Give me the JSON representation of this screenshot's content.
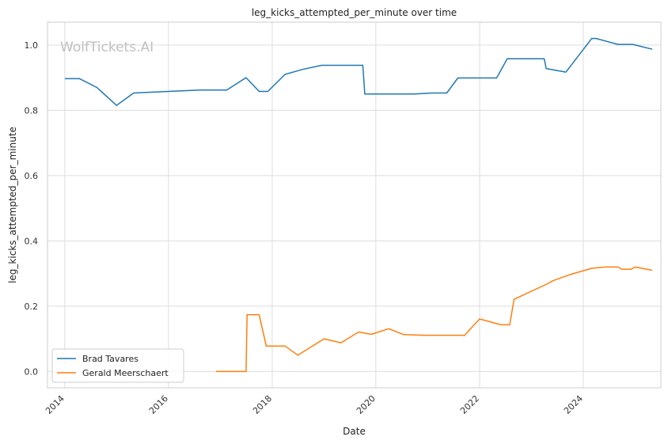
{
  "chart_data": {
    "type": "line",
    "title": "leg_kicks_attempted_per_minute over time",
    "xlabel": "Date",
    "ylabel": "leg_kicks_attempted_per_minute",
    "watermark": "WolfTickets.AI",
    "xlim": [
      "2013-09-01",
      "2025-07-01"
    ],
    "ylim": [
      -0.05,
      1.07
    ],
    "x_ticks": [
      "2014",
      "2016",
      "2018",
      "2020",
      "2022",
      "2024"
    ],
    "y_ticks": [
      "0.0",
      "0.2",
      "0.4",
      "0.6",
      "0.8",
      "1.0"
    ],
    "grid": true,
    "legend_position": "lower-left",
    "series": [
      {
        "name": "Brad Tavares",
        "color": "#1f77b4",
        "points": [
          [
            "2014-01-01",
            0.897
          ],
          [
            "2014-04-15",
            0.897
          ],
          [
            "2014-08-15",
            0.87
          ],
          [
            "2015-01-01",
            0.815
          ],
          [
            "2015-05-01",
            0.853
          ],
          [
            "2016-01-01",
            0.858
          ],
          [
            "2016-08-15",
            0.862
          ],
          [
            "2017-02-15",
            0.862
          ],
          [
            "2017-07-01",
            0.9
          ],
          [
            "2017-10-01",
            0.858
          ],
          [
            "2017-12-01",
            0.858
          ],
          [
            "2018-04-01",
            0.91
          ],
          [
            "2018-08-01",
            0.925
          ],
          [
            "2018-12-15",
            0.938
          ],
          [
            "2019-10-01",
            0.938
          ],
          [
            "2019-10-15",
            0.85
          ],
          [
            "2020-10-01",
            0.85
          ],
          [
            "2021-02-01",
            0.853
          ],
          [
            "2021-05-15",
            0.853
          ],
          [
            "2021-08-01",
            0.899
          ],
          [
            "2022-05-01",
            0.899
          ],
          [
            "2022-07-15",
            0.958
          ],
          [
            "2023-04-01",
            0.958
          ],
          [
            "2023-04-15",
            0.928
          ],
          [
            "2023-09-01",
            0.917
          ],
          [
            "2024-03-01",
            1.02
          ],
          [
            "2024-04-01",
            1.02
          ],
          [
            "2024-09-01",
            1.002
          ],
          [
            "2024-12-15",
            1.002
          ],
          [
            "2025-05-01",
            0.987
          ]
        ]
      },
      {
        "name": "Gerald Meerschaert",
        "color": "#ff7f0e",
        "points": [
          [
            "2016-12-01",
            0.0
          ],
          [
            "2017-07-01",
            0.0
          ],
          [
            "2017-07-08",
            0.174
          ],
          [
            "2017-10-01",
            0.174
          ],
          [
            "2017-11-20",
            0.078
          ],
          [
            "2018-04-01",
            0.078
          ],
          [
            "2018-07-01",
            0.05
          ],
          [
            "2019-01-01",
            0.1
          ],
          [
            "2019-05-01",
            0.088
          ],
          [
            "2019-09-01",
            0.121
          ],
          [
            "2019-12-01",
            0.114
          ],
          [
            "2020-04-01",
            0.131
          ],
          [
            "2020-07-15",
            0.113
          ],
          [
            "2020-12-01",
            0.111
          ],
          [
            "2021-09-01",
            0.111
          ],
          [
            "2021-09-15",
            0.11
          ],
          [
            "2022-01-01",
            0.161
          ],
          [
            "2022-06-01",
            0.143
          ],
          [
            "2022-08-01",
            0.143
          ],
          [
            "2022-09-01",
            0.221
          ],
          [
            "2023-05-01",
            0.27
          ],
          [
            "2023-06-01",
            0.278
          ],
          [
            "2023-10-01",
            0.297
          ],
          [
            "2024-03-01",
            0.316
          ],
          [
            "2024-06-01",
            0.32
          ],
          [
            "2024-09-01",
            0.32
          ],
          [
            "2024-10-01",
            0.313
          ],
          [
            "2024-12-01",
            0.313
          ],
          [
            "2025-01-01",
            0.32
          ],
          [
            "2025-05-01",
            0.31
          ]
        ]
      }
    ]
  }
}
